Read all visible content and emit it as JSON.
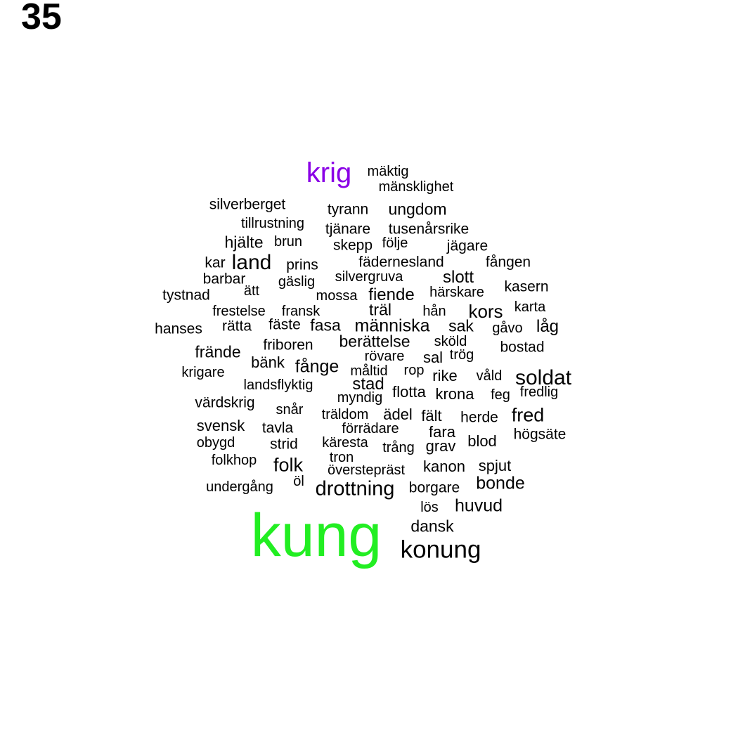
{
  "page_number": "35",
  "colors": {
    "highlight_large": "#22ee22",
    "highlight_medium": "#8a00e6",
    "default": "#000000"
  },
  "words": [
    {
      "text": "kung",
      "weight": 1.0,
      "color": "#22ee22"
    },
    {
      "text": "krig",
      "weight": 0.4,
      "color": "#8a00e6"
    },
    {
      "text": "konung",
      "weight": 0.34
    },
    {
      "text": "drottning",
      "weight": 0.3
    },
    {
      "text": "soldat",
      "weight": 0.3
    },
    {
      "text": "land",
      "weight": 0.3
    },
    {
      "text": "folk",
      "weight": 0.28
    },
    {
      "text": "fred",
      "weight": 0.28
    },
    {
      "text": "kors",
      "weight": 0.26
    },
    {
      "text": "bonde",
      "weight": 0.25
    },
    {
      "text": "huvud",
      "weight": 0.25
    },
    {
      "text": "fånge",
      "weight": 0.25
    },
    {
      "text": "människa",
      "weight": 0.25
    },
    {
      "text": "låg",
      "weight": 0.24
    },
    {
      "text": "fiende",
      "weight": 0.24
    },
    {
      "text": "stad",
      "weight": 0.24
    },
    {
      "text": "slott",
      "weight": 0.24
    },
    {
      "text": "ungdom",
      "weight": 0.23
    },
    {
      "text": "dansk",
      "weight": 0.23
    },
    {
      "text": "fasa",
      "weight": 0.23
    },
    {
      "text": "berättelse",
      "weight": 0.23
    },
    {
      "text": "träl",
      "weight": 0.23
    },
    {
      "text": "sak",
      "weight": 0.23
    },
    {
      "text": "frände",
      "weight": 0.23
    },
    {
      "text": "hjälte",
      "weight": 0.23
    },
    {
      "text": "svensk",
      "weight": 0.22
    },
    {
      "text": "grav",
      "weight": 0.22
    },
    {
      "text": "ädel",
      "weight": 0.22
    },
    {
      "text": "fält",
      "weight": 0.22
    },
    {
      "text": "fara",
      "weight": 0.22
    },
    {
      "text": "krona",
      "weight": 0.22
    },
    {
      "text": "rike",
      "weight": 0.22
    },
    {
      "text": "sal",
      "weight": 0.22
    },
    {
      "text": "spjut",
      "weight": 0.22
    },
    {
      "text": "kanon",
      "weight": 0.22
    },
    {
      "text": "blod",
      "weight": 0.22
    },
    {
      "text": "flotta",
      "weight": 0.22
    },
    {
      "text": "bänk",
      "weight": 0.22
    },
    {
      "text": "tavla",
      "weight": 0.21
    },
    {
      "text": "strid",
      "weight": 0.21
    },
    {
      "text": "högsäte",
      "weight": 0.21
    },
    {
      "text": "bostad",
      "weight": 0.21
    },
    {
      "text": "rätta",
      "weight": 0.21
    },
    {
      "text": "fäste",
      "weight": 0.21
    },
    {
      "text": "friboren",
      "weight": 0.21
    },
    {
      "text": "kasern",
      "weight": 0.21
    },
    {
      "text": "fången",
      "weight": 0.21
    },
    {
      "text": "fädernesland",
      "weight": 0.21
    },
    {
      "text": "prins",
      "weight": 0.21
    },
    {
      "text": "silverberget",
      "weight": 0.21
    },
    {
      "text": "tyrann",
      "weight": 0.21
    },
    {
      "text": "tjänare",
      "weight": 0.21
    },
    {
      "text": "tusenårsrike",
      "weight": 0.21
    },
    {
      "text": "skepp",
      "weight": 0.21
    },
    {
      "text": "jägare",
      "weight": 0.21
    },
    {
      "text": "kar",
      "weight": 0.21
    },
    {
      "text": "barbar",
      "weight": 0.21
    },
    {
      "text": "tystnad",
      "weight": 0.21
    },
    {
      "text": "hanses",
      "weight": 0.21
    },
    {
      "text": "värdskrig",
      "weight": 0.21
    },
    {
      "text": "herde",
      "weight": 0.21
    },
    {
      "text": "borgare",
      "weight": 0.21
    },
    {
      "text": "trög",
      "weight": 0.2
    },
    {
      "text": "rop",
      "weight": 0.2
    },
    {
      "text": "rövare",
      "weight": 0.2
    },
    {
      "text": "sköld",
      "weight": 0.2
    },
    {
      "text": "mossa",
      "weight": 0.2
    },
    {
      "text": "härskare",
      "weight": 0.2
    },
    {
      "text": "hån",
      "weight": 0.2
    },
    {
      "text": "fransk",
      "weight": 0.2
    },
    {
      "text": "gäslig",
      "weight": 0.2
    },
    {
      "text": "ätt",
      "weight": 0.2
    },
    {
      "text": "silvergruva",
      "weight": 0.2
    },
    {
      "text": "tillrustning",
      "weight": 0.2
    },
    {
      "text": "följe",
      "weight": 0.2
    },
    {
      "text": "brun",
      "weight": 0.2
    },
    {
      "text": "frestelse",
      "weight": 0.2
    },
    {
      "text": "krigare",
      "weight": 0.2
    },
    {
      "text": "landsflyktig",
      "weight": 0.2
    },
    {
      "text": "myndig",
      "weight": 0.2
    },
    {
      "text": "måltid",
      "weight": 0.2
    },
    {
      "text": "våld",
      "weight": 0.2
    },
    {
      "text": "feg",
      "weight": 0.2
    },
    {
      "text": "fredlig",
      "weight": 0.2
    },
    {
      "text": "gåvo",
      "weight": 0.2
    },
    {
      "text": "karta",
      "weight": 0.2
    },
    {
      "text": "snår",
      "weight": 0.2
    },
    {
      "text": "träldom",
      "weight": 0.2
    },
    {
      "text": "förrädare",
      "weight": 0.2
    },
    {
      "text": "käresta",
      "weight": 0.2
    },
    {
      "text": "trång",
      "weight": 0.2
    },
    {
      "text": "tron",
      "weight": 0.2
    },
    {
      "text": "överstepräst",
      "weight": 0.2
    },
    {
      "text": "öl",
      "weight": 0.2
    },
    {
      "text": "obygd",
      "weight": 0.2
    },
    {
      "text": "folkhop",
      "weight": 0.2
    },
    {
      "text": "undergång",
      "weight": 0.2
    },
    {
      "text": "lös",
      "weight": 0.2
    },
    {
      "text": "mäktig",
      "weight": 0.2
    },
    {
      "text": "mänsklighet",
      "weight": 0.2
    }
  ]
}
